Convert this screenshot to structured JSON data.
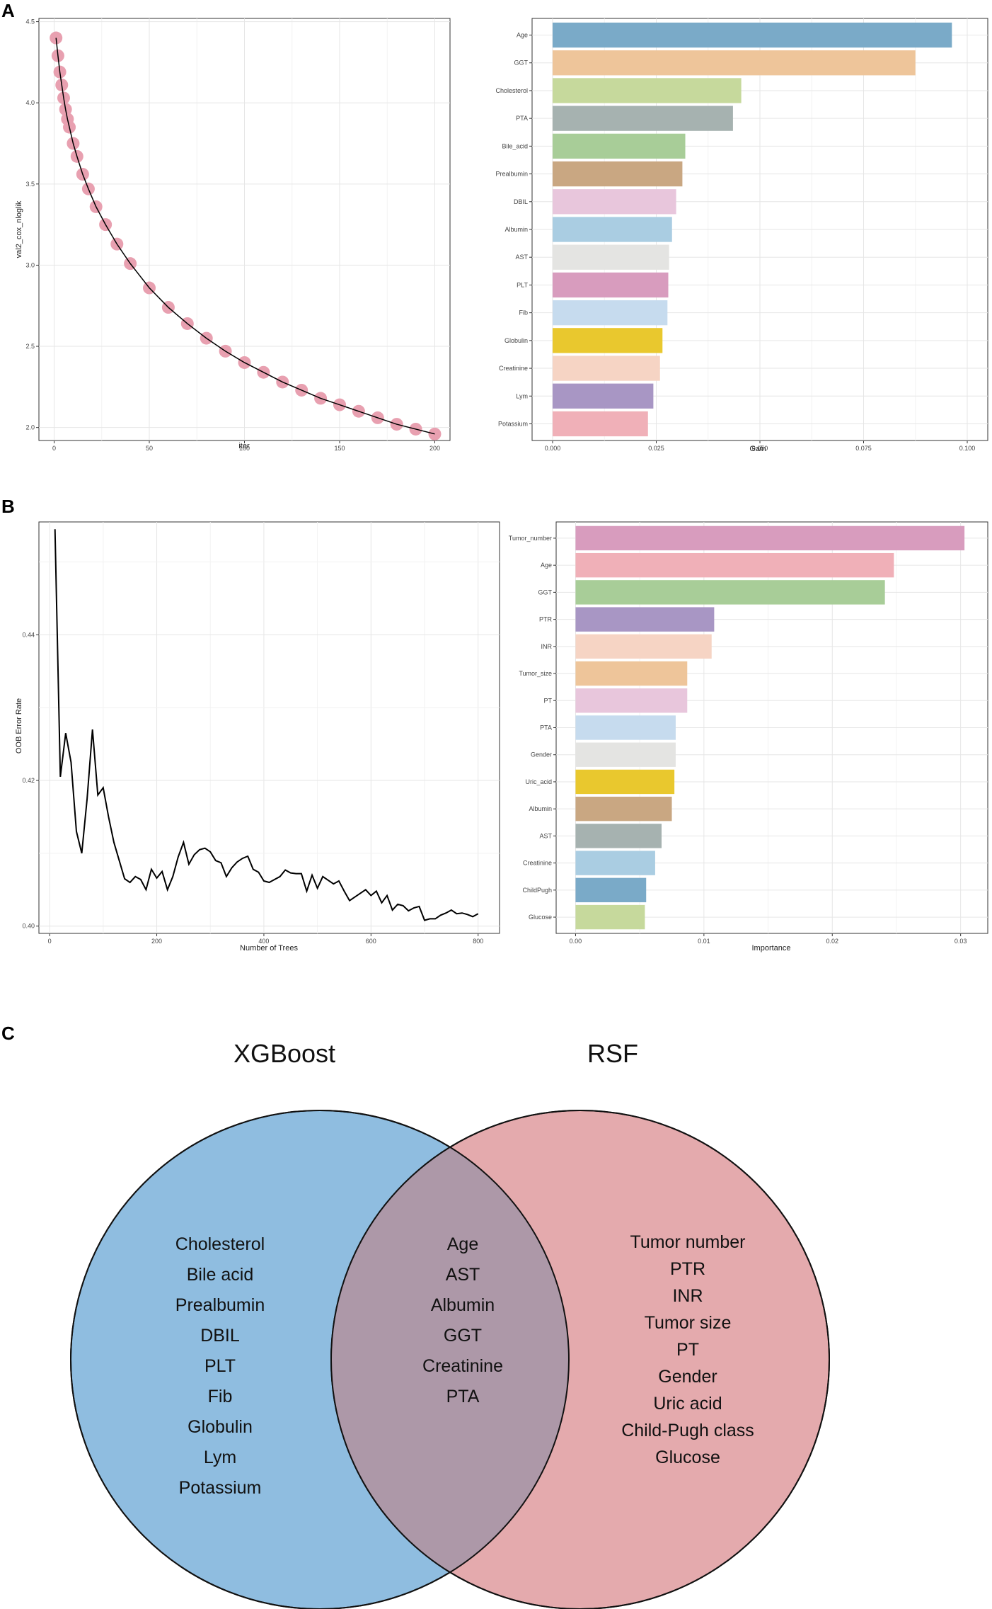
{
  "panels": {
    "a": "A",
    "b": "B",
    "c": "C"
  },
  "colors": {
    "line": "#000000",
    "xgb_points": "#e8a0b0",
    "grid": "#e6e6e6",
    "venn_left": "#8fbde0",
    "venn_right": "#e4aaad",
    "venn_overlap": "#ad98a8"
  },
  "chart_data": [
    {
      "id": "a_left",
      "type": "scatter",
      "title": "",
      "xlabel": "iter",
      "ylabel": "val2_cox_nloglik",
      "xlim": [
        -8,
        208
      ],
      "ylim": [
        1.92,
        4.52
      ],
      "xticks": [
        0,
        50,
        100,
        150,
        200
      ],
      "yticks": [
        2.0,
        2.5,
        3.0,
        3.5,
        4.0,
        4.5
      ],
      "x": [
        1,
        2,
        3,
        4,
        5,
        6,
        7,
        8,
        10,
        12,
        15,
        18,
        22,
        27,
        33,
        40,
        50,
        60,
        70,
        80,
        90,
        100,
        110,
        120,
        130,
        140,
        150,
        160,
        170,
        180,
        190,
        200
      ],
      "y": [
        4.4,
        4.29,
        4.19,
        4.11,
        4.03,
        3.96,
        3.9,
        3.85,
        3.75,
        3.67,
        3.56,
        3.47,
        3.36,
        3.25,
        3.13,
        3.01,
        2.86,
        2.74,
        2.64,
        2.55,
        2.47,
        2.4,
        2.34,
        2.28,
        2.23,
        2.18,
        2.14,
        2.1,
        2.06,
        2.02,
        1.99,
        1.96
      ]
    },
    {
      "id": "a_right",
      "type": "bar",
      "orientation": "horizontal",
      "xlabel": "Gain",
      "ylabel": "",
      "xlim": [
        0,
        0.1
      ],
      "xticks": [
        "0.000",
        "0.025",
        "0.050",
        "0.075",
        "0.100"
      ],
      "categories": [
        "Age",
        "GGT",
        "Cholesterol",
        "PTA",
        "Bile_acid",
        "Prealbumin",
        "DBIL",
        "Albumin",
        "AST",
        "PLT",
        "Fib",
        "Globulin",
        "Creatinine",
        "Lym",
        "Potassium"
      ],
      "values": [
        0.0963,
        0.0875,
        0.0455,
        0.0435,
        0.032,
        0.0313,
        0.0298,
        0.0288,
        0.0281,
        0.0279,
        0.0277,
        0.0265,
        0.0259,
        0.0243,
        0.023
      ],
      "colors": [
        "#7aaac8",
        "#eec59a",
        "#c6d99c",
        "#a6b2b0",
        "#a8cd98",
        "#c9a782",
        "#e8c6dc",
        "#aacde2",
        "#e4e4e2",
        "#d89cbe",
        "#c6dbee",
        "#e9c82e",
        "#f6d4c4",
        "#a896c4",
        "#f0b0b8"
      ]
    },
    {
      "id": "b_left",
      "type": "line",
      "xlabel": "Number of Trees",
      "ylabel": "OOB Error Rate",
      "xlim": [
        -20,
        840
      ],
      "ylim": [
        0.399,
        0.4555
      ],
      "xticks": [
        0,
        200,
        400,
        600,
        800
      ],
      "yticks": [
        "0.40",
        "0.42",
        "0.44"
      ],
      "x": [
        10,
        20,
        30,
        40,
        50,
        60,
        70,
        80,
        90,
        100,
        110,
        120,
        130,
        140,
        150,
        160,
        170,
        180,
        190,
        200,
        210,
        220,
        230,
        240,
        250,
        260,
        270,
        280,
        290,
        300,
        310,
        320,
        330,
        340,
        350,
        360,
        370,
        380,
        390,
        400,
        410,
        420,
        430,
        440,
        450,
        460,
        470,
        480,
        490,
        500,
        510,
        520,
        530,
        540,
        550,
        560,
        570,
        580,
        590,
        600,
        610,
        620,
        630,
        640,
        650,
        660,
        670,
        680,
        690,
        700,
        710,
        720,
        730,
        740,
        750,
        760,
        770,
        780,
        790,
        800
      ],
      "y": [
        0.4545,
        0.4205,
        0.4265,
        0.4225,
        0.413,
        0.41,
        0.4175,
        0.427,
        0.418,
        0.419,
        0.415,
        0.4115,
        0.409,
        0.4065,
        0.406,
        0.4068,
        0.4064,
        0.405,
        0.4078,
        0.4066,
        0.4075,
        0.405,
        0.4068,
        0.4095,
        0.4115,
        0.4085,
        0.4098,
        0.4105,
        0.4107,
        0.4102,
        0.409,
        0.4087,
        0.4068,
        0.408,
        0.4088,
        0.4093,
        0.4096,
        0.4078,
        0.4074,
        0.4062,
        0.406,
        0.4064,
        0.4068,
        0.4077,
        0.4073,
        0.4072,
        0.4072,
        0.4048,
        0.407,
        0.4052,
        0.4068,
        0.4063,
        0.4058,
        0.4062,
        0.4048,
        0.4035,
        0.404,
        0.4045,
        0.405,
        0.4042,
        0.4048,
        0.4032,
        0.4042,
        0.4022,
        0.403,
        0.4028,
        0.4021,
        0.4025,
        0.4027,
        0.4008,
        0.401,
        0.401,
        0.4015,
        0.4018,
        0.4022,
        0.4017,
        0.4018,
        0.4016,
        0.4013,
        0.4017
      ]
    },
    {
      "id": "b_right",
      "type": "bar",
      "orientation": "horizontal",
      "xlabel": "Importance",
      "ylabel": "",
      "xlim": [
        0,
        0.0306
      ],
      "xticks": [
        "0.00",
        "0.01",
        "0.02",
        "0.03"
      ],
      "categories": [
        "Tumor_number",
        "Age",
        "GGT",
        "PTR",
        "INR",
        "Tumor_size",
        "PT",
        "PTA",
        "Gender",
        "Uric_acid",
        "Albumin",
        "AST",
        "Creatinine",
        "ChildPugh",
        "Glucose"
      ],
      "values": [
        0.0303,
        0.0248,
        0.0241,
        0.0108,
        0.0106,
        0.0087,
        0.0087,
        0.0078,
        0.0078,
        0.0077,
        0.0075,
        0.0067,
        0.0062,
        0.0055,
        0.0054
      ],
      "colors": [
        "#d89cbe",
        "#f0b0b8",
        "#a8cd98",
        "#a896c4",
        "#f6d4c4",
        "#eec59a",
        "#e8c6dc",
        "#c6dbee",
        "#e4e4e2",
        "#e9c82e",
        "#c9a782",
        "#a6b2b0",
        "#aacde2",
        "#7aaac8",
        "#c6d99c"
      ]
    }
  ],
  "venn": {
    "left_title": "XGBoost",
    "right_title": "RSF",
    "left_only": [
      "Cholesterol",
      "Bile acid",
      "Prealbumin",
      "DBIL",
      "PLT",
      "Fib",
      "Globulin",
      "Lym",
      "Potassium"
    ],
    "both": [
      "Age",
      "AST",
      "Albumin",
      "GGT",
      "Creatinine",
      "PTA"
    ],
    "right_only": [
      "Tumor number",
      "PTR",
      "INR",
      "Tumor size",
      "PT",
      "Gender",
      "Uric acid",
      "Child-Pugh class",
      "Glucose"
    ]
  }
}
